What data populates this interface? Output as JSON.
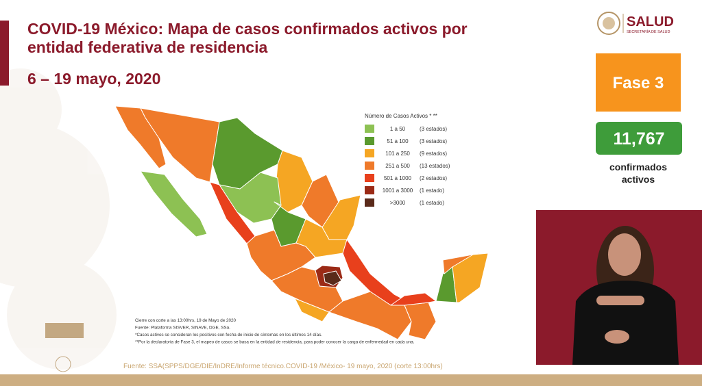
{
  "header": {
    "title_line1": "COVID-19 México: Mapa de casos confirmados activos por",
    "title_line2": "entidad federativa de residencia",
    "date": "6 – 19 mayo, 2020"
  },
  "logo": {
    "name": "SALUD",
    "subtitle": "SECRETARÍA DE SALUD"
  },
  "phase": "Fase 3",
  "total": {
    "value": "11,767",
    "label_line1": "confirmados",
    "label_line2": "activos"
  },
  "legend": {
    "title": "Número de Casos Activos * **",
    "items": [
      {
        "label": "1 a 50",
        "count": "(3 estados)",
        "color": "#8dc153"
      },
      {
        "label": "51 a 100",
        "count": "(3 estados)",
        "color": "#5a9a2e"
      },
      {
        "label": "101 a 250",
        "count": "(9 estados)",
        "color": "#f5a623"
      },
      {
        "label": "251 a 500",
        "count": "(13 estados)",
        "color": "#ef7a2a"
      },
      {
        "label": "501 a 1000",
        "count": "(2 estados)",
        "color": "#e8401c"
      },
      {
        "label": "1001 a 3000",
        "count": "(1 estado)",
        "color": "#9b2a16"
      },
      {
        "label": ">3000",
        "count": "(1 estado)",
        "color": "#5a2a1a"
      }
    ]
  },
  "notes": [
    "Cierre con corte a las 13:00hrs, 19 de Mayo de 2020",
    "Fuente: Plataforma SISVER, SINAVE, DGE, SSa.",
    "*Casos activos se consideran los positivos con fecha de inicio de síntomas en los últimos 14 días.",
    "**Por la declaratoria de Fase 3, el mapeo de casos se basa en la entidad de residencia, para poder conocer la carga de enfermedad en cada una."
  ],
  "source": "Fuente: SSA(SPPS/DGE/DIE/InDRE/Informe técnico.COVID-19 /México- 19 mayo, 2020 (corte 13:00hrs)"
}
